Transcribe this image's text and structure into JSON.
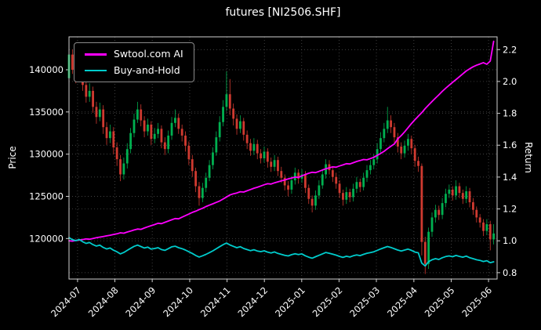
{
  "title": "futures [NI2506.SHF]",
  "axes": {
    "left_label": "Price",
    "right_label": "Return"
  },
  "legend": {
    "items": [
      {
        "label": "Swtool.com AI"
      },
      {
        "label": "Buy-and-Hold"
      }
    ]
  },
  "chart_data": {
    "type": "candlestick",
    "title": "futures [NI2506.SHF]",
    "xlabel": "",
    "ylabel_left": "Price",
    "ylabel_right": "Return",
    "grid": true,
    "legend_position": "upper-left",
    "background_color": "#000000",
    "text_color": "#ffffff",
    "up_color": "#00b050",
    "down_color": "#d03a30",
    "x_tick_labels": [
      "2024-07",
      "2024-08",
      "2024-09",
      "2024-10",
      "2024-11",
      "2024-12",
      "2025-01",
      "2025-02",
      "2025-03",
      "2025-04",
      "2025-05",
      "2025-06"
    ],
    "x_tick_days": [
      0,
      21.8,
      43.6,
      65.5,
      87.3,
      109.1,
      130.9,
      152.7,
      174.5,
      196.4,
      218.2,
      240
    ],
    "x_range": [
      -5,
      245
    ],
    "price_ticks": [
      120000,
      125000,
      130000,
      135000,
      140000
    ],
    "price_range": [
      115200,
      143900
    ],
    "return_ticks": [
      0.8,
      1.0,
      1.2,
      1.4,
      1.6,
      1.8,
      2.0,
      2.2
    ],
    "return_range": [
      0.76,
      2.28
    ],
    "candle_day_start": -5,
    "candle_day_step": 2,
    "candles": [
      [
        139000,
        142300,
        138600,
        141800
      ],
      [
        141800,
        142400,
        139500,
        140000
      ],
      [
        140000,
        140700,
        138400,
        139200
      ],
      [
        139200,
        140800,
        138700,
        140100
      ],
      [
        140100,
        140600,
        137500,
        138200
      ],
      [
        138200,
        138900,
        136100,
        136800
      ],
      [
        136800,
        138400,
        136200,
        137500
      ],
      [
        137500,
        138000,
        134900,
        135600
      ],
      [
        135600,
        136200,
        133600,
        134400
      ],
      [
        134400,
        136100,
        133900,
        135300
      ],
      [
        135300,
        135800,
        132400,
        133200
      ],
      [
        133200,
        133800,
        131100,
        131900
      ],
      [
        131900,
        133500,
        131300,
        132700
      ],
      [
        132700,
        133200,
        130000,
        130800
      ],
      [
        130800,
        131400,
        128600,
        129400
      ],
      [
        129400,
        129900,
        126800,
        127600
      ],
      [
        127600,
        129600,
        127000,
        128900
      ],
      [
        128900,
        131300,
        128300,
        130600
      ],
      [
        130600,
        133100,
        130100,
        132500
      ],
      [
        132500,
        134800,
        132000,
        134100
      ],
      [
        134100,
        136200,
        133700,
        135300
      ],
      [
        135300,
        135900,
        133300,
        134000
      ],
      [
        134000,
        134500,
        132000,
        132700
      ],
      [
        132700,
        134200,
        132200,
        133500
      ],
      [
        133500,
        133900,
        131100,
        131800
      ],
      [
        131800,
        133100,
        131300,
        132400
      ],
      [
        132400,
        133700,
        131900,
        133000
      ],
      [
        133000,
        133400,
        130700,
        131400
      ],
      [
        131400,
        132000,
        129900,
        130600
      ],
      [
        130600,
        132800,
        130100,
        132200
      ],
      [
        132200,
        134400,
        131700,
        133700
      ],
      [
        133700,
        135300,
        133200,
        134300
      ],
      [
        134300,
        134800,
        132400,
        133000
      ],
      [
        133000,
        133500,
        131500,
        132200
      ],
      [
        132200,
        132700,
        130300,
        131000
      ],
      [
        131000,
        131500,
        128700,
        129400
      ],
      [
        129400,
        129900,
        127300,
        128000
      ],
      [
        128000,
        128400,
        125500,
        126200
      ],
      [
        126200,
        126700,
        123900,
        124800
      ],
      [
        124800,
        126600,
        124300,
        126000
      ],
      [
        126000,
        127800,
        125500,
        127200
      ],
      [
        127200,
        129300,
        126800,
        128700
      ],
      [
        128700,
        130800,
        128200,
        130200
      ],
      [
        130200,
        132700,
        129800,
        132000
      ],
      [
        132000,
        134500,
        131500,
        133800
      ],
      [
        133800,
        136400,
        133300,
        135600
      ],
      [
        135600,
        139800,
        135100,
        137100
      ],
      [
        137100,
        138900,
        134600,
        135400
      ],
      [
        135400,
        136000,
        133400,
        134200
      ],
      [
        134200,
        134700,
        132300,
        133000
      ],
      [
        133000,
        134600,
        132500,
        133900
      ],
      [
        133900,
        134300,
        131600,
        132300
      ],
      [
        132300,
        132800,
        130600,
        131300
      ],
      [
        131300,
        131800,
        129800,
        130400
      ],
      [
        130400,
        131900,
        129900,
        131200
      ],
      [
        131200,
        131700,
        129400,
        130100
      ],
      [
        130100,
        130600,
        128900,
        129500
      ],
      [
        129500,
        130900,
        129000,
        130300
      ],
      [
        130300,
        130700,
        128400,
        129100
      ],
      [
        129100,
        129600,
        127900,
        128500
      ],
      [
        128500,
        129900,
        128000,
        129300
      ],
      [
        129300,
        129700,
        127400,
        128000
      ],
      [
        128000,
        128500,
        126600,
        127200
      ],
      [
        127200,
        127600,
        125700,
        126300
      ],
      [
        126300,
        126800,
        125000,
        125800
      ],
      [
        125800,
        127400,
        125300,
        126900
      ],
      [
        126900,
        128400,
        126400,
        127800
      ],
      [
        127800,
        128200,
        126500,
        127100
      ],
      [
        127100,
        128200,
        126600,
        127600
      ],
      [
        127600,
        128000,
        125400,
        126000
      ],
      [
        126000,
        126400,
        124100,
        124700
      ],
      [
        124700,
        125100,
        123100,
        123900
      ],
      [
        123900,
        125700,
        123400,
        125100
      ],
      [
        125100,
        126900,
        124700,
        126300
      ],
      [
        126300,
        128100,
        125900,
        127600
      ],
      [
        127600,
        129400,
        127100,
        128800
      ],
      [
        128800,
        129300,
        127600,
        128100
      ],
      [
        128100,
        128500,
        126700,
        127300
      ],
      [
        127300,
        127800,
        125900,
        126500
      ],
      [
        126500,
        126900,
        124800,
        125400
      ],
      [
        125400,
        125800,
        123900,
        124600
      ],
      [
        124600,
        126100,
        124100,
        125500
      ],
      [
        125500,
        125900,
        124300,
        124900
      ],
      [
        124900,
        126500,
        124400,
        125900
      ],
      [
        125900,
        127300,
        125400,
        126700
      ],
      [
        126700,
        127100,
        125500,
        126100
      ],
      [
        126100,
        127800,
        125700,
        127200
      ],
      [
        127200,
        128700,
        126700,
        128100
      ],
      [
        128100,
        129300,
        127600,
        128700
      ],
      [
        128700,
        130000,
        128200,
        129400
      ],
      [
        129400,
        131300,
        128900,
        130600
      ],
      [
        130600,
        132600,
        130100,
        131900
      ],
      [
        131900,
        133700,
        131400,
        133000
      ],
      [
        133000,
        135600,
        132500,
        134000
      ],
      [
        134000,
        134600,
        132500,
        133200
      ],
      [
        133200,
        133700,
        131300,
        132000
      ],
      [
        132000,
        132500,
        130200,
        130900
      ],
      [
        130900,
        131400,
        129400,
        130100
      ],
      [
        130100,
        131600,
        129600,
        131000
      ],
      [
        131000,
        132400,
        130400,
        131800
      ],
      [
        131800,
        132200,
        130000,
        130700
      ],
      [
        130700,
        131100,
        128500,
        129200
      ],
      [
        129200,
        129700,
        127900,
        128600
      ],
      [
        128600,
        128900,
        118000,
        119600
      ],
      [
        119600,
        120200,
        115800,
        117000
      ],
      [
        117000,
        121300,
        116400,
        120800
      ],
      [
        120800,
        123100,
        120200,
        122500
      ],
      [
        122500,
        124000,
        121900,
        123400
      ],
      [
        123400,
        123900,
        122200,
        122800
      ],
      [
        122800,
        124800,
        122300,
        124200
      ],
      [
        124200,
        125900,
        123700,
        125300
      ],
      [
        125300,
        126400,
        124800,
        125800
      ],
      [
        125800,
        126200,
        124500,
        125100
      ],
      [
        125100,
        126900,
        124600,
        126200
      ],
      [
        126200,
        126600,
        124800,
        125400
      ],
      [
        125400,
        125800,
        124100,
        124700
      ],
      [
        124700,
        126200,
        124200,
        125600
      ],
      [
        125600,
        126000,
        123700,
        124300
      ],
      [
        124300,
        124800,
        122800,
        123400
      ],
      [
        123400,
        123800,
        121900,
        122500
      ],
      [
        122500,
        122900,
        121300,
        121900
      ],
      [
        121900,
        122300,
        120300,
        120900
      ],
      [
        120900,
        122300,
        120400,
        121700
      ],
      [
        121700,
        122100,
        118600,
        119900
      ],
      [
        119900,
        121700,
        119300,
        120600
      ]
    ],
    "series": [
      {
        "name": "Swtool.com AI",
        "axis": "return",
        "color": "#ff00ff",
        "data_name": "ai-return-line",
        "values": [
          1.0,
          0.998,
          1.002,
          1.005,
          1.008,
          1.012,
          1.01,
          1.015,
          1.019,
          1.023,
          1.027,
          1.031,
          1.035,
          1.04,
          1.044,
          1.05,
          1.048,
          1.055,
          1.061,
          1.068,
          1.074,
          1.072,
          1.08,
          1.088,
          1.095,
          1.102,
          1.11,
          1.108,
          1.116,
          1.124,
          1.132,
          1.14,
          1.138,
          1.148,
          1.158,
          1.168,
          1.178,
          1.186,
          1.196,
          1.204,
          1.215,
          1.224,
          1.232,
          1.241,
          1.25,
          1.262,
          1.275,
          1.288,
          1.295,
          1.3,
          1.308,
          1.306,
          1.314,
          1.322,
          1.33,
          1.336,
          1.344,
          1.352,
          1.358,
          1.356,
          1.364,
          1.37,
          1.376,
          1.382,
          1.388,
          1.394,
          1.4,
          1.398,
          1.408,
          1.416,
          1.424,
          1.43,
          1.428,
          1.436,
          1.444,
          1.452,
          1.458,
          1.464,
          1.462,
          1.47,
          1.476,
          1.484,
          1.482,
          1.49,
          1.498,
          1.504,
          1.51,
          1.508,
          1.516,
          1.524,
          1.536,
          1.548,
          1.562,
          1.578,
          1.594,
          1.608,
          1.64,
          1.66,
          1.684,
          1.71,
          1.736,
          1.76,
          1.782,
          1.804,
          1.83,
          1.852,
          1.874,
          1.896,
          1.916,
          1.938,
          1.958,
          1.976,
          1.994,
          2.012,
          2.03,
          2.048,
          2.066,
          2.08,
          2.092,
          2.102,
          2.11,
          2.118,
          2.108,
          2.128,
          2.252
        ]
      },
      {
        "name": "Buy-and-Hold",
        "axis": "return",
        "color": "#00cccc",
        "data_name": "buy-and-hold-line",
        "values": [
          1.02,
          1.007,
          1.001,
          1.008,
          0.994,
          0.984,
          0.989,
          0.976,
          0.967,
          0.973,
          0.958,
          0.949,
          0.955,
          0.941,
          0.931,
          0.918,
          0.927,
          0.94,
          0.953,
          0.965,
          0.973,
          0.964,
          0.955,
          0.96,
          0.948,
          0.952,
          0.957,
          0.945,
          0.94,
          0.951,
          0.962,
          0.966,
          0.957,
          0.951,
          0.942,
          0.931,
          0.921,
          0.908,
          0.898,
          0.906,
          0.915,
          0.926,
          0.937,
          0.95,
          0.963,
          0.976,
          0.986,
          0.974,
          0.965,
          0.957,
          0.963,
          0.952,
          0.945,
          0.938,
          0.944,
          0.936,
          0.932,
          0.937,
          0.929,
          0.924,
          0.93,
          0.921,
          0.915,
          0.909,
          0.905,
          0.913,
          0.919,
          0.914,
          0.918,
          0.906,
          0.897,
          0.891,
          0.9,
          0.909,
          0.918,
          0.927,
          0.922,
          0.916,
          0.91,
          0.902,
          0.896,
          0.903,
          0.898,
          0.906,
          0.911,
          0.907,
          0.915,
          0.922,
          0.926,
          0.931,
          0.94,
          0.949,
          0.957,
          0.964,
          0.958,
          0.95,
          0.942,
          0.936,
          0.942,
          0.948,
          0.94,
          0.929,
          0.925,
          0.86,
          0.842,
          0.869,
          0.881,
          0.888,
          0.883,
          0.894,
          0.901,
          0.905,
          0.9,
          0.908,
          0.902,
          0.897,
          0.904,
          0.894,
          0.888,
          0.881,
          0.877,
          0.87,
          0.875,
          0.863,
          0.868
        ]
      }
    ]
  }
}
